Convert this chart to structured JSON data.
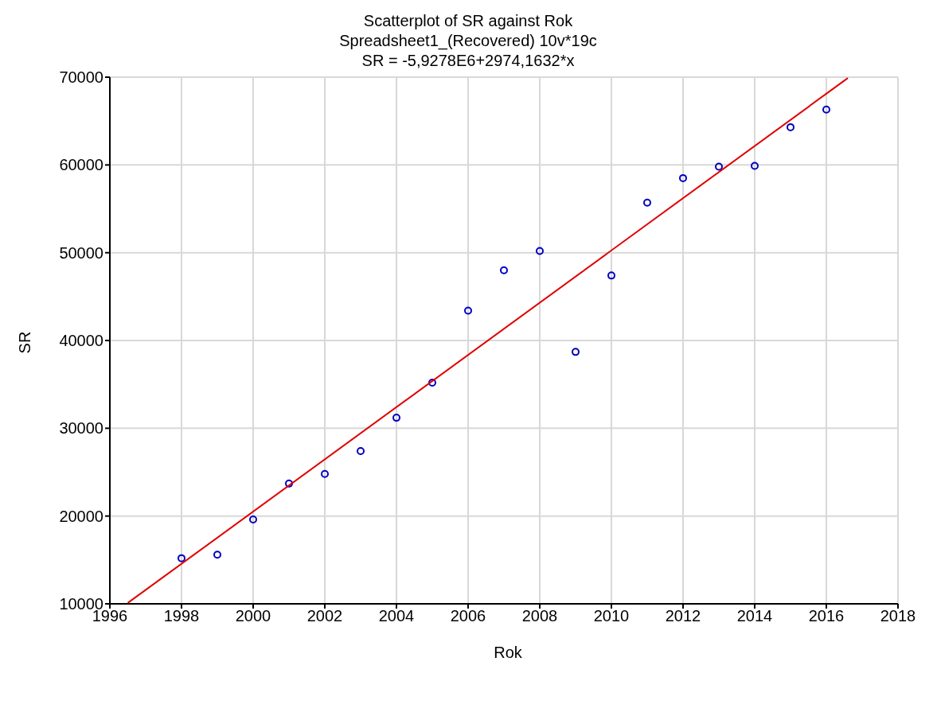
{
  "chart_data": {
    "type": "scatter",
    "title": "Scatterplot of SR against Rok",
    "subtitle": "Spreadsheet1_(Recovered) 10v*19c\nSR = -5,9278E6+2974,1632*x",
    "xlabel": "Rok",
    "ylabel": "SR",
    "x": [
      1998,
      1999,
      2000,
      2001,
      2002,
      2003,
      2004,
      2005,
      2006,
      2007,
      2008,
      2009,
      2010,
      2011,
      2012,
      2013,
      2014,
      2015,
      2016
    ],
    "series": [
      {
        "type": "scatter",
        "color": "#0000c0",
        "marker": "circle",
        "values": [
          15200,
          15600,
          19600,
          23700,
          24800,
          27400,
          31200,
          35200,
          43400,
          48000,
          50200,
          38700,
          47400,
          55700,
          58500,
          59800,
          59900,
          64300,
          66300
        ]
      },
      {
        "type": "line",
        "color": "#e00000",
        "marker": "none",
        "line_style": "solid",
        "x": [
          1996.5,
          2016.6
        ],
        "values": [
          10100,
          69900
        ]
      }
    ],
    "xlim": [
      1996,
      2018
    ],
    "xticks": [
      1996,
      1998,
      2000,
      2002,
      2004,
      2006,
      2008,
      2010,
      2012,
      2014,
      2016,
      2018
    ],
    "ylim": [
      10000,
      70000
    ],
    "yticks": [
      10000,
      20000,
      30000,
      40000,
      50000,
      60000,
      70000
    ],
    "grid": true
  }
}
